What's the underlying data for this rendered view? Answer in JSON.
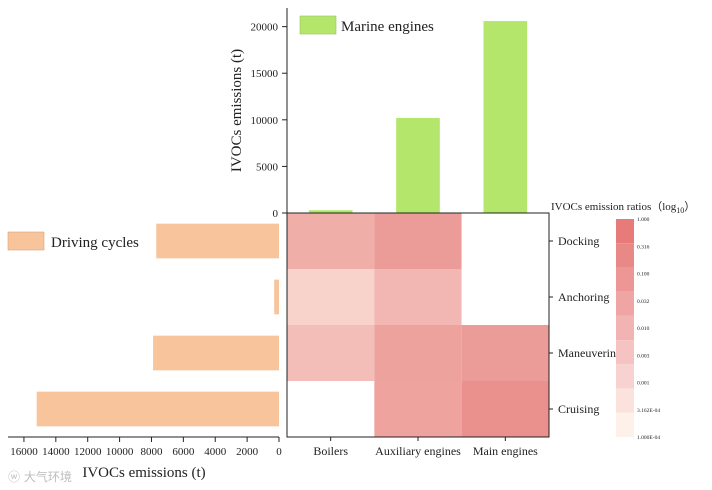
{
  "chart_data": [
    {
      "type": "bar",
      "title": "",
      "legend": "Marine engines",
      "categories": [
        "Boilers",
        "Auxiliary engines",
        "Main engines"
      ],
      "values": [
        300,
        10200,
        20600
      ],
      "ylabel": "IVOCs emissions (t)",
      "ylim": [
        0,
        22000
      ],
      "yticks": [
        0,
        5000,
        10000,
        15000,
        20000
      ],
      "color": "#b5e66c"
    },
    {
      "type": "bar",
      "orientation": "horizontal",
      "title": "",
      "legend": "Driving cycles",
      "categories": [
        "Docking",
        "Anchoring",
        "Maneuvering",
        "Cruising"
      ],
      "values": [
        7700,
        300,
        7900,
        15200
      ],
      "xlabel": "IVOCs emissions (t)",
      "xlim": [
        0,
        17000
      ],
      "xticks": [
        16000,
        14000,
        12000,
        10000,
        8000,
        6000,
        4000,
        2000,
        0
      ],
      "color": "#f8c49c"
    },
    {
      "type": "heatmap",
      "title": "",
      "colorbar_title": "IVOCs emission ratios（log",
      "colorbar_title_sub": "10",
      "colorbar_title_end": "）",
      "x_categories": [
        "Boilers",
        "Auxiliary engines",
        "Main engines"
      ],
      "y_categories": [
        "Docking",
        "Anchoring",
        "Maneuverin",
        "Cruising"
      ],
      "values": [
        [
          0.02,
          0.08,
          null
        ],
        [
          0.0012,
          0.01,
          null
        ],
        [
          0.006,
          0.05,
          0.08
        ],
        [
          null,
          0.045,
          0.2
        ]
      ],
      "colorbar_ticks": [
        "1.000",
        "0.316",
        "0.100",
        "0.032",
        "0.010",
        "0.003",
        "0.001",
        "3.162E-04",
        "1.000E-04"
      ],
      "colorbar_colors": [
        "#e67b79",
        "#e98987",
        "#ec9795",
        "#efa5a4",
        "#f2b4b2",
        "#f5c3c1",
        "#f8d2d0",
        "#fbe2dc",
        "#fdf1ea"
      ],
      "min_color": "#fdf3ea",
      "max_color": "#e67b79"
    }
  ],
  "watermark": "大气环境"
}
